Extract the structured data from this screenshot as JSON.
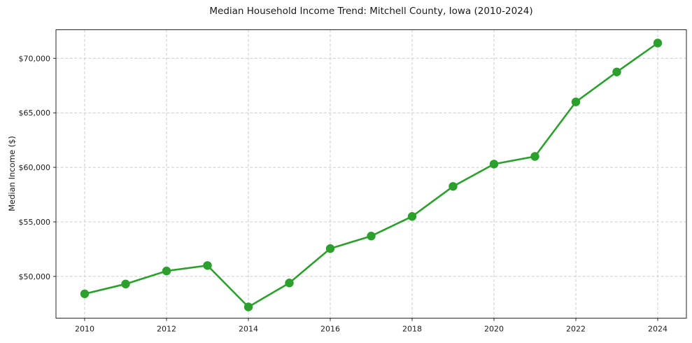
{
  "chart_data": {
    "type": "line",
    "title": "Median Household Income Trend: Mitchell County, Iowa (2010-2024)",
    "xlabel": "",
    "ylabel": "Median Income ($)",
    "x": [
      2010,
      2011,
      2012,
      2013,
      2014,
      2015,
      2016,
      2017,
      2018,
      2019,
      2020,
      2021,
      2022,
      2023,
      2024
    ],
    "values": [
      48400,
      49300,
      50500,
      51000,
      47200,
      49400,
      52550,
      53700,
      55500,
      58250,
      60300,
      61000,
      66000,
      68750,
      71400
    ],
    "series_name": "Median Household Income",
    "x_ticks": {
      "values": [
        2010,
        2012,
        2014,
        2016,
        2018,
        2020,
        2022,
        2024
      ],
      "labels": [
        "2010",
        "2012",
        "2014",
        "2016",
        "2018",
        "2020",
        "2022",
        "2024"
      ]
    },
    "y_ticks": {
      "values": [
        50000,
        55000,
        60000,
        65000,
        70000
      ],
      "labels": [
        "$50,000",
        "$55,000",
        "$60,000",
        "$65,000",
        "$70,000"
      ]
    },
    "xlim": [
      2009.3,
      2024.7
    ],
    "ylim": [
      46170,
      72620
    ],
    "grid": true,
    "grid_style": "dashed",
    "legend_position": "none",
    "line_color": "#2ca02c",
    "marker": "circle",
    "background_color": "#ffffff"
  }
}
